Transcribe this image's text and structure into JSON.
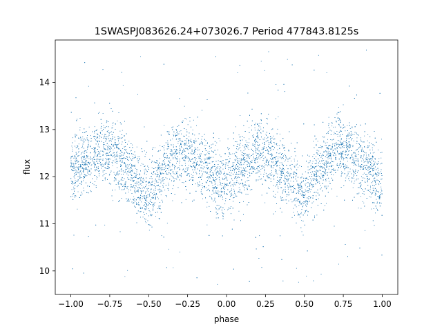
{
  "chart_data": {
    "type": "scatter",
    "title": "1SWASPJ083626.24+073026.7 Period 477843.8125s",
    "xlabel": "phase",
    "ylabel": "flux",
    "xlim": [
      -1.1,
      1.1
    ],
    "ylim": [
      9.5,
      14.9
    ],
    "x_ticks": [
      -1.0,
      -0.75,
      -0.5,
      -0.25,
      0.0,
      0.25,
      0.5,
      0.75,
      1.0
    ],
    "x_tick_labels": [
      "−1.00",
      "−0.75",
      "−0.50",
      "−0.25",
      "0.00",
      "0.25",
      "0.50",
      "0.75",
      "1.00"
    ],
    "y_ticks": [
      10,
      11,
      12,
      13,
      14
    ],
    "y_tick_labels": [
      "10",
      "11",
      "12",
      "13",
      "14"
    ],
    "grid": false,
    "legend": "none",
    "point_color": "#1f77b4",
    "phase_fold": {
      "x_range": [
        -1.0,
        1.0
      ],
      "trend_phase": [
        -1.0,
        -0.9,
        -0.8,
        -0.75,
        -0.7,
        -0.6,
        -0.55,
        -0.5,
        -0.45,
        -0.35,
        -0.28,
        -0.2,
        -0.1,
        -0.05,
        0.0,
        0.05,
        0.1,
        0.2,
        0.25,
        0.3,
        0.4,
        0.45,
        0.5,
        0.55,
        0.65,
        0.72,
        0.8,
        0.9,
        0.95,
        1.0
      ],
      "trend_flux": [
        12.1,
        12.35,
        12.55,
        12.6,
        12.4,
        12.0,
        11.75,
        11.55,
        11.9,
        12.4,
        12.55,
        12.35,
        12.1,
        11.95,
        11.75,
        12.0,
        12.2,
        12.5,
        12.55,
        12.4,
        12.0,
        11.75,
        11.55,
        11.9,
        12.4,
        12.65,
        12.45,
        12.2,
        12.0,
        11.8
      ],
      "scatter_sigma": 0.35,
      "outlier_range": [
        9.7,
        14.7
      ]
    }
  }
}
